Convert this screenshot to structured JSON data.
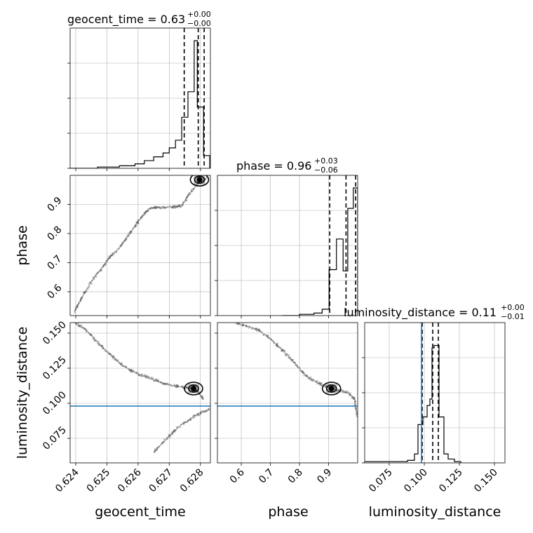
{
  "chart_data": {
    "type": "corner",
    "parameters": [
      "geocent_time",
      "phase",
      "luminosity_distance"
    ],
    "titles": [
      {
        "name": "geocent_time",
        "value": "0.63",
        "plus": "+0.00",
        "minus": "−0.00"
      },
      {
        "name": "phase",
        "value": "0.96",
        "plus": "+0.03",
        "minus": "−0.06"
      },
      {
        "name": "luminosity_distance",
        "value": "0.11",
        "plus": "+0.00",
        "minus": "−0.01"
      }
    ],
    "axes": {
      "geocent_time": {
        "label": "geocent_time",
        "range": [
          0.62382,
          0.62832
        ],
        "ticks": [
          0.624,
          0.625,
          0.626,
          0.627,
          0.628
        ],
        "tick_labels": [
          "0.624",
          "0.625",
          "0.626",
          "0.627",
          "0.628"
        ]
      },
      "phase": {
        "label": "phase",
        "range": [
          0.518,
          1.0
        ],
        "ticks": [
          0.6,
          0.7,
          0.8,
          0.9
        ],
        "tick_labels": [
          "0.6",
          "0.7",
          "0.8",
          "0.9"
        ]
      },
      "luminosity_distance": {
        "label": "luminosity_distance",
        "range": [
          0.0575,
          0.1575
        ],
        "ticks": [
          0.075,
          0.1,
          0.125,
          0.15
        ],
        "tick_labels": [
          "0.075",
          "0.100",
          "0.125",
          "0.150"
        ]
      }
    },
    "quantiles": {
      "geocent_time": [
        0.62748,
        0.62793,
        0.62812
      ],
      "phase": [
        0.904,
        0.96,
        0.993
      ],
      "luminosity_distance": [
        0.0985,
        0.106,
        0.11
      ]
    },
    "truths": {
      "luminosity_distance": 0.098
    },
    "histograms": {
      "geocent_time": {
        "edges": [
          0.6238,
          0.6247,
          0.6254,
          0.6259,
          0.6262,
          0.6265,
          0.6268,
          0.627,
          0.6272,
          0.6274,
          0.6276,
          0.6278,
          0.6279,
          0.6281,
          0.6283
        ],
        "counts": [
          0,
          0.01,
          0.02,
          0.035,
          0.06,
          0.09,
          0.12,
          0.16,
          0.22,
          0.4,
          0.6,
          1.0,
          0.48,
          0.1
        ]
      },
      "phase": {
        "edges": [
          0.74,
          0.8,
          0.85,
          0.878,
          0.902,
          0.927,
          0.95,
          0.966,
          0.985,
          1.0
        ],
        "counts": [
          0,
          0.01,
          0.02,
          0.05,
          0.36,
          0.6,
          0.35,
          0.84,
          1.0
        ]
      },
      "luminosity_distance": {
        "edges": [
          0.057,
          0.066,
          0.088,
          0.093,
          0.0955,
          0.099,
          0.102,
          0.104,
          0.1055,
          0.107,
          0.1105,
          0.114,
          0.117,
          0.1215,
          0.126
        ],
        "counts": [
          0.01,
          0.01,
          0.02,
          0.07,
          0.3,
          0.36,
          0.45,
          0.5,
          0.9,
          0.92,
          0.36,
          0.07,
          0.03,
          0.01
        ]
      }
    },
    "scatter": {
      "phase_vs_geocent_time": {
        "path": [
          [
            0.62395,
            0.53
          ],
          [
            0.6241,
            0.56
          ],
          [
            0.6243,
            0.6
          ],
          [
            0.6246,
            0.65
          ],
          [
            0.6249,
            0.69
          ],
          [
            0.6251,
            0.72
          ],
          [
            0.6254,
            0.75
          ],
          [
            0.6256,
            0.78
          ],
          [
            0.6258,
            0.81
          ],
          [
            0.626,
            0.84
          ],
          [
            0.6262,
            0.87
          ],
          [
            0.6264,
            0.887
          ],
          [
            0.6266,
            0.89
          ],
          [
            0.6269,
            0.89
          ],
          [
            0.6272,
            0.893
          ],
          [
            0.6274,
            0.895
          ],
          [
            0.6276,
            0.93
          ],
          [
            0.6279,
            0.97
          ],
          [
            0.6282,
            0.99
          ]
        ]
      },
      "luminosity_distance_vs_geocent_time": {
        "path": [
          [
            0.624,
            0.157
          ],
          [
            0.6243,
            0.153
          ],
          [
            0.6246,
            0.146
          ],
          [
            0.6249,
            0.139
          ],
          [
            0.6252,
            0.133
          ],
          [
            0.6255,
            0.127
          ],
          [
            0.6258,
            0.123
          ],
          [
            0.6261,
            0.12
          ],
          [
            0.6264,
            0.118
          ],
          [
            0.6267,
            0.115
          ],
          [
            0.627,
            0.113
          ],
          [
            0.6273,
            0.112
          ],
          [
            0.6276,
            0.111
          ],
          [
            0.6279,
            0.109
          ],
          [
            0.6281,
            0.103
          ]
        ],
        "tail": [
          [
            0.6265,
            0.065
          ],
          [
            0.6268,
            0.072
          ],
          [
            0.6271,
            0.079
          ],
          [
            0.6274,
            0.085
          ],
          [
            0.6277,
            0.089
          ],
          [
            0.628,
            0.093
          ],
          [
            0.6283,
            0.096
          ]
        ]
      },
      "luminosity_distance_vs_phase": {
        "path": [
          [
            0.58,
            0.157
          ],
          [
            0.62,
            0.155
          ],
          [
            0.66,
            0.152
          ],
          [
            0.7,
            0.146
          ],
          [
            0.73,
            0.14
          ],
          [
            0.76,
            0.134
          ],
          [
            0.79,
            0.127
          ],
          [
            0.82,
            0.12
          ],
          [
            0.85,
            0.116
          ],
          [
            0.88,
            0.113
          ],
          [
            0.91,
            0.111
          ],
          [
            0.94,
            0.109
          ],
          [
            0.97,
            0.107
          ],
          [
            0.99,
            0.103
          ],
          [
            0.998,
            0.09
          ]
        ]
      }
    },
    "best_points": {
      "phase_vs_geocent_time": [
        0.62797,
        0.985
      ],
      "luminosity_distance_vs_geocent_time": [
        0.62778,
        0.1105
      ],
      "luminosity_distance_vs_phase": [
        0.91,
        0.1105
      ]
    },
    "colors": {
      "line": "#000000",
      "truth": "#1f77b4",
      "grid": "#b0b0b0",
      "points": "#555555"
    },
    "grid": true
  }
}
